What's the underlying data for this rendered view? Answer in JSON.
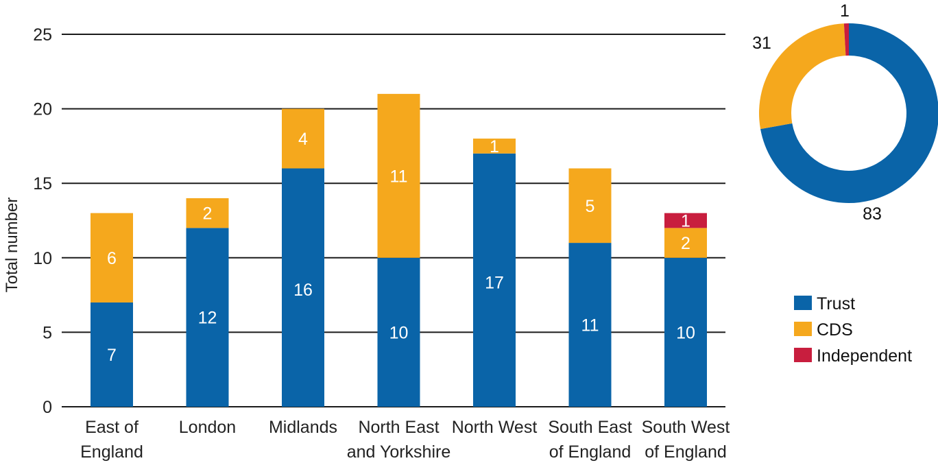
{
  "chart_data": [
    {
      "type": "bar",
      "stacked": true,
      "ylabel": "Total number",
      "ylim": [
        0,
        25
      ],
      "yticks": [
        0,
        5,
        10,
        15,
        20,
        25
      ],
      "grid": true,
      "categories": [
        [
          "East of",
          "England"
        ],
        [
          "London"
        ],
        [
          "Midlands"
        ],
        [
          "North East",
          "and Yorkshire"
        ],
        [
          "North West"
        ],
        [
          "South East",
          "of England"
        ],
        [
          "South West",
          "of England"
        ]
      ],
      "series": [
        {
          "name": "Trust",
          "color": "#0a64a8",
          "values": [
            7,
            12,
            16,
            10,
            17,
            11,
            10
          ]
        },
        {
          "name": "CDS",
          "color": "#f5a81d",
          "values": [
            6,
            2,
            4,
            11,
            1,
            5,
            2
          ]
        },
        {
          "name": "Independent",
          "color": "#c81e3e",
          "values": [
            0,
            0,
            0,
            0,
            0,
            0,
            1
          ]
        }
      ]
    },
    {
      "type": "pie",
      "donut": true,
      "slices": [
        {
          "name": "Trust",
          "value": 83,
          "color": "#0a64a8"
        },
        {
          "name": "CDS",
          "value": 31,
          "color": "#f5a81d"
        },
        {
          "name": "Independent",
          "value": 1,
          "color": "#c81e3e"
        }
      ],
      "legend_position": "right"
    }
  ]
}
